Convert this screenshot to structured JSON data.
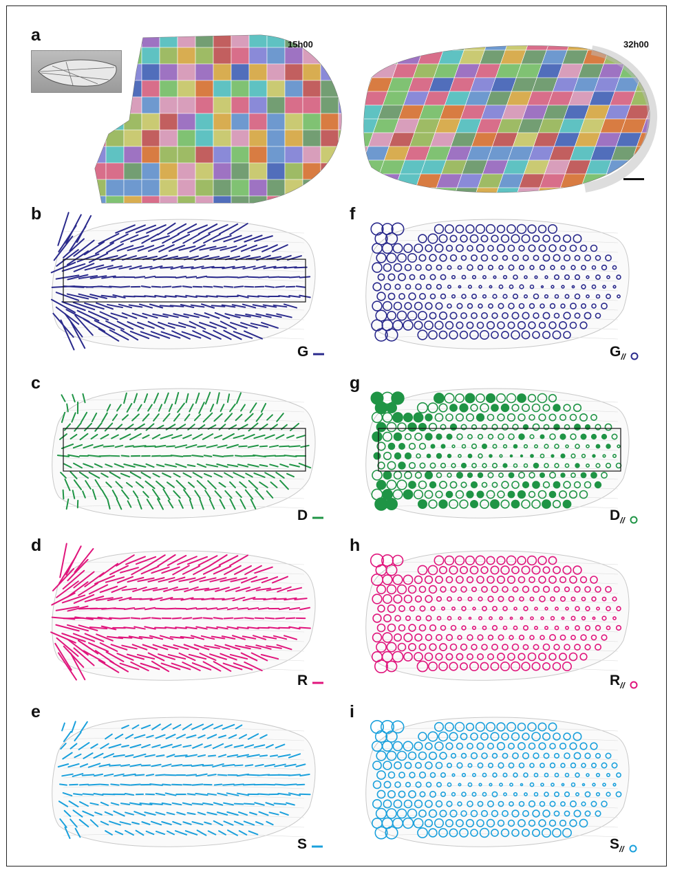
{
  "panels": {
    "a": {
      "label": "a",
      "time_left": "15h00",
      "time_right": "32h00"
    },
    "b": {
      "label": "b",
      "legend": "G",
      "color": "#2a2a8c"
    },
    "c": {
      "label": "c",
      "legend": "D",
      "color": "#1f9445"
    },
    "d": {
      "label": "d",
      "legend": "R",
      "color": "#e0157c"
    },
    "e": {
      "label": "e",
      "legend": "S",
      "color": "#1aa0dc"
    },
    "f": {
      "label": "f",
      "legend": "G",
      "legend_sub": "//",
      "color": "#2a2a8c"
    },
    "g": {
      "label": "g",
      "legend": "D",
      "legend_sub": "//",
      "color": "#1f9445"
    },
    "h": {
      "label": "h",
      "legend": "R",
      "legend_sub": "//",
      "color": "#e0157c"
    },
    "i": {
      "label": "i",
      "legend": "S",
      "legend_sub": "//",
      "color": "#1aa0dc"
    }
  },
  "colors": {
    "clone_palette": [
      "#6a9ad6",
      "#e06a8a",
      "#7ec870",
      "#e0b04a",
      "#a070c8",
      "#5ac8c8",
      "#e07a3a",
      "#c85a5a",
      "#8a8ae0",
      "#d0d070",
      "#70a070",
      "#e0a0c0",
      "#4a6ac0",
      "#a0c060"
    ],
    "outline_gray": "#c8c8c8",
    "tissue_gray": "#8e8e8e"
  }
}
